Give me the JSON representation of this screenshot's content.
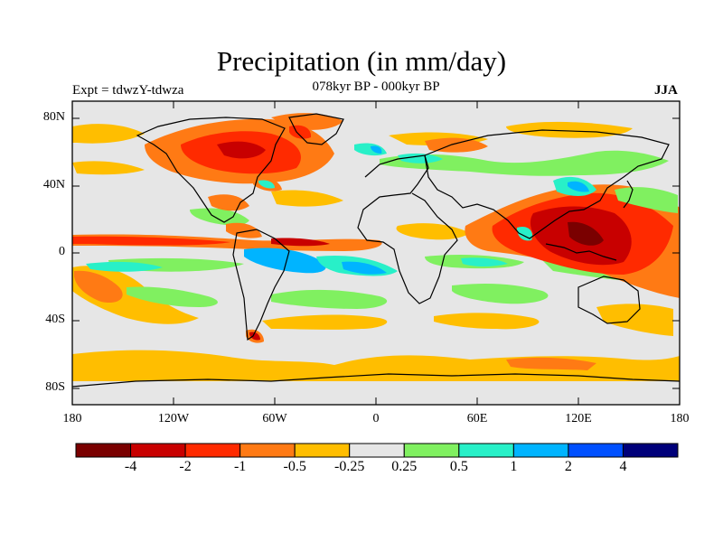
{
  "title": "Precipitation (in mm/day)",
  "subtitle_left": "Expt = tdwzY-tdwza",
  "subtitle_center": "078kyr BP - 000kyr BP",
  "subtitle_right": "JJA",
  "map": {
    "lat_ticks": [
      "80N",
      "40N",
      "0",
      "40S",
      "80S"
    ],
    "lon_ticks": [
      "180",
      "120W",
      "60W",
      "0",
      "60E",
      "120E",
      "180"
    ]
  },
  "colorbar": {
    "colors": [
      "#7a0000",
      "#c80000",
      "#ff2a00",
      "#ff7a14",
      "#ffbe00",
      "#e6e6e6",
      "#80f060",
      "#28f0c8",
      "#00b4ff",
      "#0050ff",
      "#00007a"
    ],
    "labels": [
      "-4",
      "-2",
      "-1",
      "-0.5",
      "-0.25",
      "0.25",
      "0.5",
      "1",
      "2",
      "4"
    ]
  }
}
